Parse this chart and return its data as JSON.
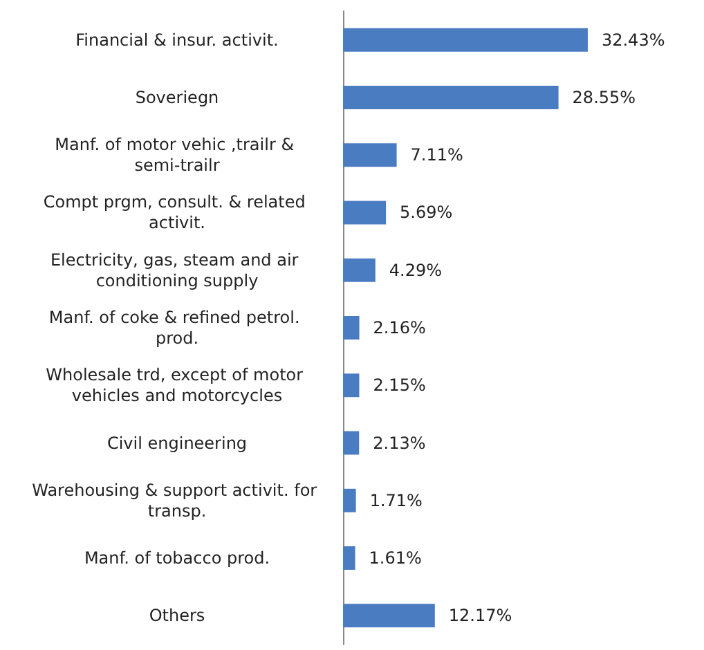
{
  "chart_data": {
    "type": "bar",
    "orientation": "horizontal",
    "color": "#4a7cc2",
    "tick_labels": "y",
    "categories": [
      "Financial & insur. activit.",
      "Soveriegn",
      "Manf. of motor vehic ,trailr & semi-trailr",
      "Compt prgm, consult. & related activit.",
      "Electricity, gas, steam and air conditioning supply",
      "Manf. of coke & refined petrol. prod.",
      "Wholesale trd, except of motor vehicles and motorcycles",
      "Civil engineering",
      "Warehousing & support activit. for transp.",
      "Manf. of tobacco prod.",
      "Others"
    ],
    "values": [
      32.43,
      28.55,
      7.11,
      5.69,
      4.29,
      2.16,
      2.15,
      2.13,
      1.71,
      1.61,
      12.17
    ],
    "value_labels": [
      "32.43%",
      "28.55%",
      "7.11%",
      "5.69%",
      "4.29%",
      "2.16%",
      "2.15%",
      "2.13%",
      "1.71%",
      "1.61%",
      "12.17%"
    ]
  }
}
